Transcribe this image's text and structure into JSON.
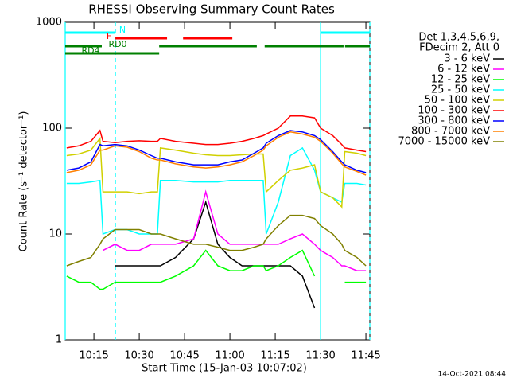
{
  "chart_data": {
    "type": "line",
    "title": "RHESSI Observing Summary Count Rates",
    "x_label": "Start Time (15-Jan-03 10:07:02)",
    "y_label": "Count Rate (s⁻¹ detector⁻¹)",
    "footer": "14-Oct-2021 08:44",
    "log_y": true,
    "legend_header": [
      "Det 1,3,4,5,6,9,",
      "FDecim 2, Att 0"
    ],
    "xlim": [
      605.5,
      706.3
    ],
    "xticks": [
      {
        "value": 615,
        "label": "10:15"
      },
      {
        "value": 630,
        "label": "10:30"
      },
      {
        "value": 645,
        "label": "10:45"
      },
      {
        "value": 660,
        "label": "11:00"
      },
      {
        "value": 675,
        "label": "11:15"
      },
      {
        "value": 690,
        "label": "11:30"
      },
      {
        "value": 705,
        "label": "11:45"
      }
    ],
    "ylim": [
      1,
      1000
    ],
    "yticks": [
      1,
      10,
      100,
      1000
    ],
    "x": [
      606,
      610,
      614,
      617,
      618,
      622,
      626,
      630,
      634,
      636,
      637,
      642,
      648,
      652,
      656,
      660,
      664,
      668,
      671,
      672,
      676,
      680,
      684,
      688,
      690,
      694,
      697,
      698,
      702,
      705
    ],
    "series": [
      {
        "name": "3 - 6 keV",
        "color": "#000000",
        "values": [
          null,
          null,
          null,
          null,
          null,
          5,
          5,
          5,
          5,
          5,
          5,
          6,
          9,
          20,
          8,
          6,
          5,
          5,
          5,
          5,
          5,
          5,
          4,
          2,
          null,
          null,
          null,
          null,
          null,
          null
        ]
      },
      {
        "name": "6 - 12 keV",
        "color": "#ff00ff",
        "values": [
          null,
          null,
          null,
          null,
          7,
          8,
          7,
          7,
          8,
          8,
          8,
          8,
          9,
          25,
          10,
          8,
          8,
          8,
          8,
          8,
          8,
          9,
          10,
          8,
          7,
          6,
          5,
          5,
          4.5,
          4.5
        ]
      },
      {
        "name": "12 - 25 keV",
        "color": "#00ff00",
        "values": [
          4,
          3.5,
          3.5,
          3,
          3,
          3.5,
          3.5,
          3.5,
          3.5,
          3.5,
          3.5,
          4,
          5,
          7,
          5,
          4.5,
          4.5,
          5,
          5,
          4.5,
          5,
          6,
          7,
          4,
          null,
          null,
          null,
          3.5,
          3.5,
          3.5
        ]
      },
      {
        "name": "25 - 50 keV",
        "color": "#00ffff",
        "values": [
          30,
          30,
          31,
          32,
          10,
          11,
          11,
          10,
          10,
          10,
          32,
          32,
          31,
          31,
          31,
          32,
          32,
          32,
          32,
          10,
          20,
          55,
          65,
          40,
          25,
          22,
          20,
          30,
          30,
          29
        ]
      },
      {
        "name": "50 - 100 keV",
        "color": "#d0d000",
        "values": [
          55,
          57,
          62,
          80,
          25,
          25,
          25,
          24,
          25,
          25,
          65,
          62,
          58,
          56,
          55,
          55,
          56,
          57,
          57,
          25,
          32,
          40,
          42,
          45,
          25,
          22,
          18,
          60,
          58,
          55
        ]
      },
      {
        "name": "100 - 300 keV",
        "color": "#ff0000",
        "values": [
          65,
          68,
          75,
          95,
          75,
          73,
          75,
          76,
          75,
          75,
          80,
          75,
          72,
          70,
          70,
          72,
          75,
          80,
          85,
          88,
          100,
          130,
          130,
          125,
          100,
          85,
          70,
          65,
          62,
          60
        ]
      },
      {
        "name": "300 - 800 keV",
        "color": "#0000ff",
        "values": [
          40,
          42,
          48,
          70,
          68,
          70,
          68,
          62,
          55,
          52,
          52,
          48,
          45,
          45,
          45,
          48,
          50,
          58,
          65,
          72,
          85,
          95,
          92,
          85,
          78,
          60,
          48,
          45,
          40,
          38
        ]
      },
      {
        "name": "800 - 7000 keV",
        "color": "#ff8000",
        "values": [
          38,
          40,
          45,
          62,
          62,
          68,
          66,
          60,
          52,
          50,
          50,
          46,
          43,
          42,
          43,
          45,
          48,
          55,
          62,
          68,
          82,
          92,
          88,
          82,
          75,
          58,
          46,
          43,
          39,
          36
        ]
      },
      {
        "name": "7000 - 15000 keV",
        "color": "#808000",
        "values": [
          5,
          5.5,
          6,
          8,
          9,
          11,
          11,
          11,
          10,
          10,
          10,
          9,
          8,
          8,
          7.5,
          7,
          7,
          7.5,
          8,
          9,
          12,
          15,
          15,
          14,
          12,
          10,
          8,
          7,
          6,
          5
        ]
      }
    ],
    "flags": [
      {
        "label": "N",
        "color": "#00ffff",
        "segments": [
          [
            605.5,
            622.1
          ],
          [
            690,
            706.3
          ]
        ]
      },
      {
        "label": "F",
        "color": "#ff0000",
        "segments": [
          [
            622.1,
            639.2
          ],
          [
            644.5,
            660.8
          ]
        ]
      },
      {
        "label": "RD0",
        "color": "#008000",
        "segments": [
          [
            605.5,
            617.6
          ],
          [
            636.6,
            668.9
          ],
          [
            671.5,
            697.6
          ],
          [
            698.1,
            706.3
          ]
        ]
      },
      {
        "label": "RD4",
        "color": "#008000",
        "segments": [
          [
            605.5,
            636.6
          ]
        ]
      }
    ],
    "vlines": [
      {
        "x": 605.5,
        "color": "#00ffff",
        "dashed": false
      },
      {
        "x": 622.1,
        "color": "#00ffff",
        "dashed": true
      },
      {
        "x": 690,
        "color": "#00ffff",
        "dashed": false
      },
      {
        "x": 706.3,
        "color": "#00ffff",
        "dashed": true
      }
    ]
  }
}
